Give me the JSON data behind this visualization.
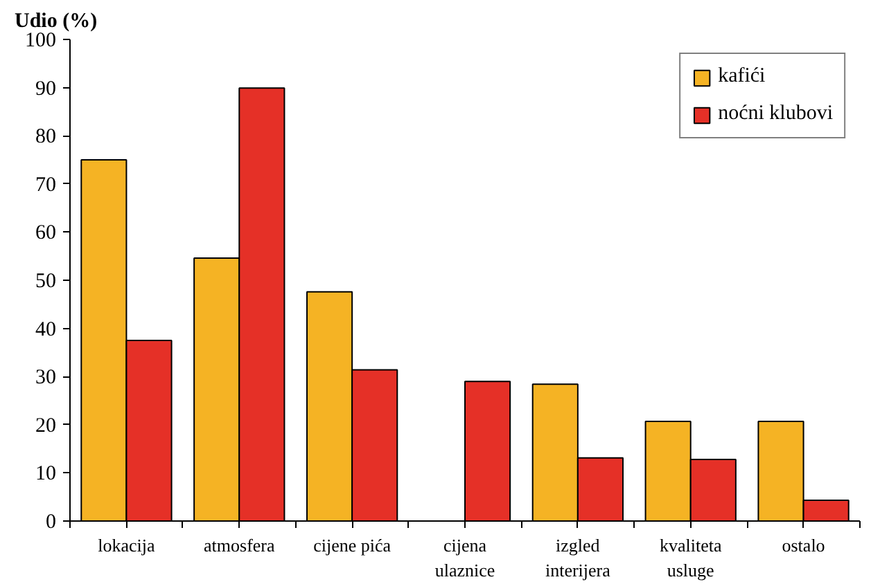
{
  "chart_data": {
    "type": "bar",
    "ylabel": "Udio (%)",
    "categories": [
      "lokacija",
      "atmosfera",
      "cijene pića",
      "cijena ulaznice",
      "izgled interijera",
      "kvaliteta usluge",
      "ostalo"
    ],
    "series": [
      {
        "name": "kafići",
        "color": "#f5b324",
        "values": [
          75.0,
          54.6,
          47.6,
          null,
          28.4,
          20.7,
          20.7
        ]
      },
      {
        "name": "noćni klubovi",
        "color": "#e53027",
        "values": [
          37.5,
          89.9,
          31.4,
          29.0,
          13.1,
          12.8,
          4.3
        ]
      }
    ],
    "ylim": [
      0,
      100
    ],
    "yticks": [
      0,
      10,
      20,
      30,
      40,
      50,
      60,
      70,
      80,
      90,
      100
    ],
    "grid": false,
    "legend": "top right"
  }
}
